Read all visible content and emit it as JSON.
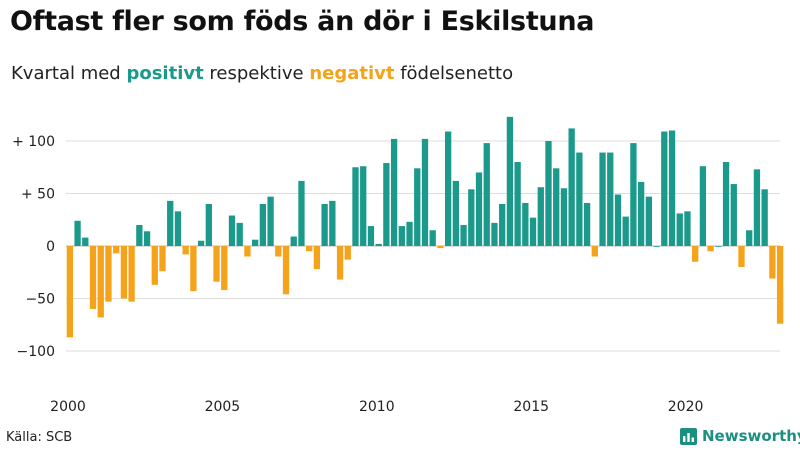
{
  "header": {
    "title": "Oftast fler som föds än dör i Eskilstuna",
    "subtitle_prefix": "Kvartal med ",
    "subtitle_positive": "positivt",
    "subtitle_middle": " respektive ",
    "subtitle_negative": "negativt",
    "subtitle_suffix": " födelsenetto"
  },
  "footer": {
    "source": "Källa: SCB",
    "brand": "Newsworthy",
    "brand_icon": "bar-chart-icon"
  },
  "colors": {
    "positive": "#1b9a8b",
    "negative": "#f5a31a",
    "grid": "#dddddd",
    "zero_line": "#bbbbbb"
  },
  "chart_data": {
    "type": "bar",
    "x_start": "2000 Q1",
    "x_ticks": [
      "2000",
      "2005",
      "2010",
      "2015",
      "2020"
    ],
    "y_ticks": [
      {
        "value": 100,
        "label": "+ 100"
      },
      {
        "value": 50,
        "label": "+  50"
      },
      {
        "value": 0,
        "label": "0"
      },
      {
        "value": -50,
        "label": "−50"
      },
      {
        "value": -100,
        "label": "−100"
      }
    ],
    "ylim": [
      -130,
      125
    ],
    "grid": true,
    "values": [
      -87,
      24,
      8,
      -60,
      -68,
      -53,
      -7,
      -50,
      -53,
      20,
      14,
      -37,
      -24,
      43,
      33,
      -8,
      -43,
      5,
      40,
      -34,
      -42,
      29,
      22,
      -10,
      6,
      40,
      47,
      -10,
      -46,
      9,
      62,
      -5,
      -22,
      40,
      43,
      -32,
      -13,
      75,
      76,
      19,
      2,
      79,
      102,
      19,
      23,
      74,
      102,
      15,
      -2,
      109,
      62,
      20,
      54,
      70,
      98,
      22,
      40,
      123,
      80,
      41,
      27,
      56,
      100,
      74,
      55,
      112,
      89,
      41,
      -10,
      89,
      89,
      49,
      28,
      98,
      61,
      47,
      0,
      109,
      110,
      31,
      33,
      -15,
      76,
      -5,
      0,
      80,
      59,
      -20,
      15,
      73,
      54,
      -31,
      -74
    ]
  }
}
